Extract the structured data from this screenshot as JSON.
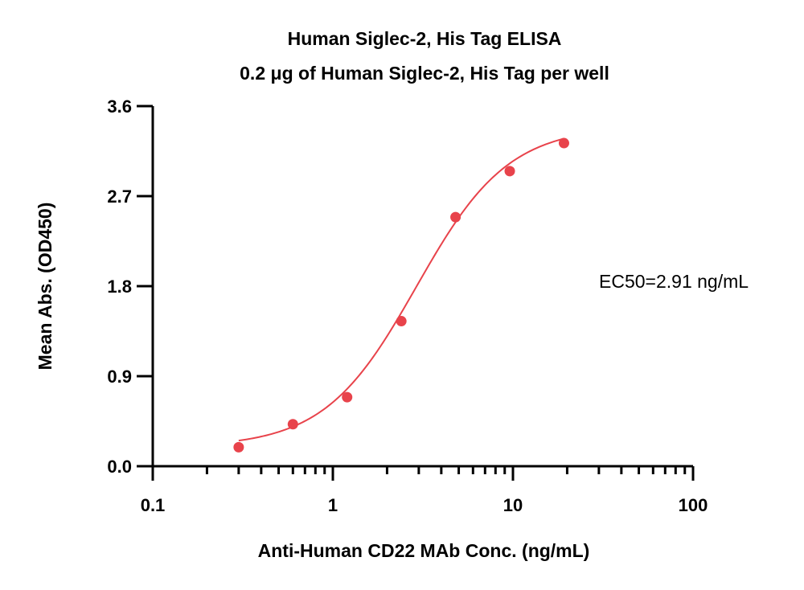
{
  "chart_data": {
    "type": "scatter",
    "title": "Human Siglec-2, His Tag ELISA",
    "subtitle": "0.2 μg of Human Siglec-2, His Tag per well",
    "xlabel": "Anti-Human CD22 MAb Conc. (ng/mL)",
    "ylabel": "Mean Abs. (OD450)",
    "x_scale": "log",
    "xlim": [
      0.1,
      100
    ],
    "ylim": [
      0.0,
      3.6
    ],
    "x_ticks": [
      0.1,
      1,
      10,
      100
    ],
    "x_tick_labels": [
      "0.1",
      "1",
      "10",
      "100"
    ],
    "y_ticks": [
      0.0,
      0.9,
      1.8,
      2.7,
      3.6
    ],
    "y_tick_labels": [
      "0.0",
      "0.9",
      "1.8",
      "2.7",
      "3.6"
    ],
    "grid": false,
    "annotation": "EC50=2.91 ng/mL",
    "color": "#e8434b",
    "series": [
      {
        "x": [
          0.3,
          0.6,
          1.2,
          2.4,
          4.8,
          9.6,
          19.2
        ],
        "y": [
          0.19,
          0.42,
          0.69,
          1.45,
          2.49,
          2.95,
          3.23
        ]
      }
    ],
    "fit_curve": {
      "bottom": 0.19,
      "top": 3.4,
      "ec50": 2.91,
      "hill": 1.7
    }
  }
}
